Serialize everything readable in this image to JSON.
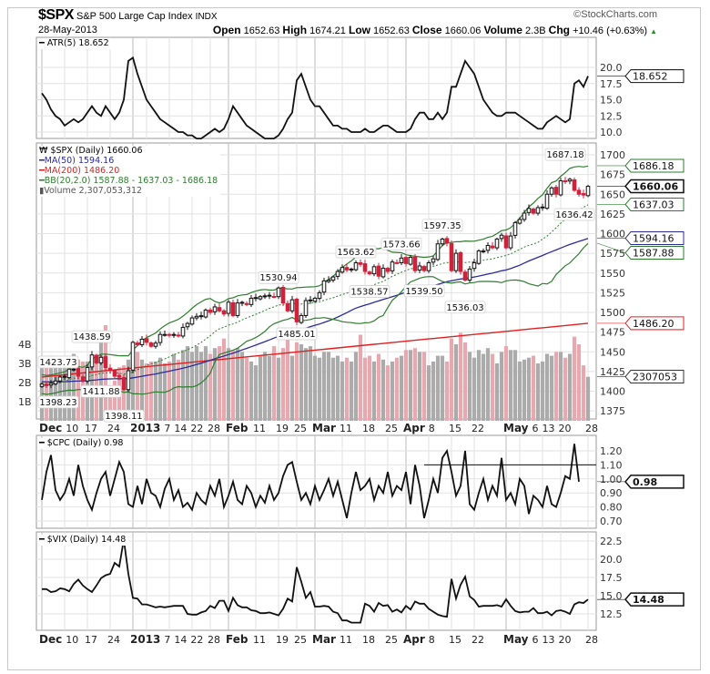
{
  "header": {
    "symbol": "$SPX",
    "name": "S&P 500 Large Cap Index",
    "exchange": "INDX",
    "brand": "©StockCharts.com",
    "date": "28-May-2013",
    "open_label": "Open",
    "open": "1652.63",
    "high_label": "High",
    "high": "1674.21",
    "low_label": "Low",
    "low": "1652.63",
    "close_label": "Close",
    "close": "1660.06",
    "volume_label": "Volume",
    "volume": "2.3B",
    "chg_label": "Chg",
    "chg": "+10.46 (+0.63%)",
    "up_arrow": "▲"
  },
  "legends": {
    "atr": "ATR(5) 18.652",
    "spx": "$SPX (Daily) 1660.06",
    "ma50": "MA(50) 1594.16",
    "ma200": "MA(200) 1486.20",
    "bb": "BB(20,2.0) 1587.88 - 1637.03 - 1686.18",
    "volume": "Volume 2,307,053,312",
    "cpc": "$CPC (Daily) 0.98",
    "vix": "$VIX (Daily) 14.48"
  },
  "colors": {
    "ma50": "#2b2b9a",
    "ma200": "#e02020",
    "bb": "#2e7d2e",
    "down": "#d0203a",
    "vol_up": "#ababab",
    "vol_down": "#e8a8b0"
  },
  "chart_data": {
    "type": "line",
    "title": "$SPX S&P 500 Large Cap Index",
    "x_ticks": [
      {
        "i": 0,
        "label": "Dec",
        "bold": true
      },
      {
        "i": 5,
        "label": "10"
      },
      {
        "i": 10,
        "label": "17"
      },
      {
        "i": 15,
        "label": "24"
      },
      {
        "i": 20,
        "label": "2013",
        "bold": true
      },
      {
        "i": 23,
        "label": "7"
      },
      {
        "i": 28,
        "label": "14"
      },
      {
        "i": 33,
        "label": "22"
      },
      {
        "i": 37,
        "label": "28"
      },
      {
        "i": 41,
        "label": "Feb",
        "bold": true
      },
      {
        "i": 47,
        "label": "11"
      },
      {
        "i": 52,
        "label": "19"
      },
      {
        "i": 56,
        "label": "25"
      },
      {
        "i": 60,
        "label": "Mar",
        "bold": true
      },
      {
        "i": 66,
        "label": "11"
      },
      {
        "i": 71,
        "label": "18"
      },
      {
        "i": 76,
        "label": "25"
      },
      {
        "i": 80,
        "label": "Apr",
        "bold": true
      },
      {
        "i": 85,
        "label": "8"
      },
      {
        "i": 90,
        "label": "15"
      },
      {
        "i": 95,
        "label": "22"
      },
      {
        "i": 102,
        "label": "May",
        "bold": true
      },
      {
        "i": 105,
        "label": "6"
      },
      {
        "i": 110,
        "label": "13"
      },
      {
        "i": 114,
        "label": "20"
      },
      {
        "i": 120,
        "label": "28"
      }
    ],
    "spx_close": [
      1409,
      1407,
      1410,
      1413,
      1418,
      1418,
      1428,
      1428,
      1419,
      1413,
      1430,
      1446,
      1436,
      1443,
      1430,
      1426,
      1419,
      1418,
      1402,
      1426,
      1462,
      1459,
      1466,
      1462,
      1457,
      1461,
      1472,
      1472,
      1471,
      1472,
      1470,
      1481,
      1486,
      1493,
      1495,
      1495,
      1503,
      1500,
      1507,
      1502,
      1498,
      1513,
      1496,
      1512,
      1512,
      1510,
      1518,
      1518,
      1520,
      1521,
      1521,
      1520,
      1531,
      1512,
      1502,
      1516,
      1488,
      1496,
      1515,
      1515,
      1518,
      1525,
      1540,
      1541,
      1545,
      1552,
      1557,
      1554,
      1555,
      1563,
      1561,
      1552,
      1549,
      1558,
      1546,
      1556,
      1552,
      1564,
      1563,
      1569,
      1562,
      1570,
      1553,
      1559,
      1553,
      1563,
      1568,
      1587,
      1593,
      1588,
      1553,
      1575,
      1552,
      1541,
      1555,
      1563,
      1578,
      1578,
      1585,
      1582,
      1593,
      1598,
      1582,
      1597,
      1614,
      1618,
      1626,
      1632,
      1626,
      1633,
      1633,
      1650,
      1658,
      1650,
      1667,
      1666,
      1669,
      1655,
      1650,
      1649,
      1660.06
    ],
    "price_annotations": [
      {
        "i": 3,
        "value": "1423.73",
        "type": "high"
      },
      {
        "i": 0,
        "value": "1398.23",
        "type": "low"
      },
      {
        "i": 11,
        "value": "1438.59",
        "type": "high"
      },
      {
        "i": 13,
        "value": "1411.88",
        "type": "low"
      },
      {
        "i": 18,
        "value": "1398.11",
        "type": "low"
      },
      {
        "i": 52,
        "value": "1530.94",
        "type": "high"
      },
      {
        "i": 56,
        "value": "1485.01",
        "type": "low"
      },
      {
        "i": 69,
        "value": "1563.62",
        "type": "high"
      },
      {
        "i": 72,
        "value": "1538.57",
        "type": "low"
      },
      {
        "i": 79,
        "value": "1573.66",
        "type": "high"
      },
      {
        "i": 84,
        "value": "1539.50",
        "type": "low"
      },
      {
        "i": 88,
        "value": "1597.35",
        "type": "high"
      },
      {
        "i": 93,
        "value": "1536.03",
        "type": "low"
      },
      {
        "i": 115,
        "value": "1687.18",
        "type": "high"
      },
      {
        "i": 118,
        "value": "1636.42",
        "type": "low"
      }
    ],
    "price_axis": {
      "ticks": [
        1375,
        1400,
        1425,
        1450,
        1475,
        1500,
        1525,
        1550,
        1575,
        1600,
        1625,
        1650,
        1675,
        1700
      ],
      "ylim": [
        1365,
        1712
      ]
    },
    "ma50_prior": 1412,
    "ma200_range": [
      1418,
      1486.2
    ],
    "volume_b": [
      3.2,
      3.1,
      3.4,
      3.0,
      3.1,
      3.0,
      3.3,
      3.5,
      3.2,
      3.1,
      3.1,
      3.4,
      3.5,
      4.2,
      5.0,
      1.5,
      2.1,
      2.8,
      2.9,
      3.2,
      3.8,
      3.6,
      3.2,
      3.0,
      3.1,
      3.1,
      3.3,
      3.0,
      3.1,
      3.5,
      3.2,
      3.7,
      3.9,
      3.6,
      3.9,
      3.6,
      3.9,
      3.5,
      3.8,
      3.9,
      4.3,
      3.8,
      3.7,
      3.8,
      3.6,
      3.3,
      3.1,
      2.9,
      3.4,
      3.6,
      3.4,
      3.9,
      3.3,
      3.8,
      4.3,
      3.4,
      4.1,
      4.0,
      3.8,
      3.9,
      3.4,
      3.3,
      3.6,
      3.6,
      3.3,
      3.4,
      3.1,
      3.3,
      3.1,
      3.6,
      4.5,
      3.3,
      3.4,
      3.1,
      3.5,
      3.2,
      2.9,
      3.1,
      3.3,
      3.4,
      3.7,
      3.7,
      3.8,
      3.6,
      3.6,
      2.9,
      3.1,
      3.4,
      3.4,
      3.1,
      4.3,
      4.0,
      4.6,
      4.1,
      3.6,
      3.3,
      3.7,
      3.5,
      3.8,
      3.5,
      3.0,
      3.6,
      3.9,
      3.7,
      3.7,
      3.1,
      3.2,
      3.3,
      3.4,
      3.0,
      3.1,
      3.5,
      3.4,
      3.6,
      3.6,
      3.3,
      3.5,
      4.4,
      4.0,
      2.9,
      2.3
    ],
    "volume_axis": {
      "ticks": [
        {
          "v": 1,
          "label": "1B"
        },
        {
          "v": 2,
          "label": "2B"
        },
        {
          "v": 3,
          "label": "3B"
        },
        {
          "v": 4,
          "label": "4B"
        }
      ]
    },
    "atr": [
      16,
      15,
      13.5,
      12.5,
      12,
      11,
      11.5,
      12,
      11.5,
      12,
      13,
      14,
      13,
      12.5,
      14,
      13,
      12,
      13,
      15,
      21,
      21.5,
      19,
      17,
      15,
      14,
      13,
      12,
      11.5,
      11,
      10.5,
      10,
      10,
      9.5,
      9.5,
      9,
      9,
      9.5,
      10,
      10.5,
      10,
      10.5,
      12,
      14,
      13,
      12,
      11,
      10.5,
      10,
      9.5,
      9,
      9,
      9,
      9.5,
      10.5,
      12,
      13,
      18,
      19,
      17,
      15,
      14,
      14,
      13,
      12,
      11,
      11,
      10.5,
      10.5,
      10,
      10,
      10,
      10.5,
      10,
      10,
      10.5,
      11,
      11,
      10.5,
      10,
      10,
      10,
      10.5,
      12,
      13,
      13,
      12,
      12,
      13,
      12,
      13,
      17,
      17,
      19,
      21,
      20,
      19,
      17,
      15,
      14,
      13,
      12.5,
      12.5,
      13,
      13,
      13,
      12.5,
      12,
      11.5,
      11,
      10.5,
      10.5,
      11.5,
      12,
      12.5,
      12,
      11.5,
      12,
      17.5,
      18,
      17,
      18.652
    ],
    "atr_axis": {
      "ticks": [
        "10.0",
        "12.5",
        "15.0",
        "17.5",
        "20.0"
      ]
    },
    "cpc": [
      0.85,
      1.05,
      1.17,
      0.92,
      0.85,
      0.9,
      1.0,
      0.88,
      1.1,
      0.95,
      0.85,
      0.78,
      0.9,
      1.0,
      1.05,
      0.88,
      1.0,
      1.12,
      1.05,
      0.82,
      0.8,
      0.95,
      0.82,
      1.0,
      0.9,
      0.88,
      0.8,
      0.93,
      1.0,
      0.85,
      0.92,
      0.8,
      0.83,
      0.78,
      0.9,
      0.85,
      0.82,
      0.95,
      0.88,
      1.0,
      0.8,
      0.88,
      0.98,
      0.85,
      0.82,
      0.95,
      0.9,
      0.8,
      0.88,
      0.83,
      0.95,
      0.85,
      0.9,
      1.02,
      1.1,
      1.12,
      0.98,
      0.85,
      0.9,
      0.82,
      0.95,
      0.85,
      0.92,
      1.0,
      0.88,
      0.98,
      0.85,
      0.72,
      0.9,
      1.05,
      0.92,
      0.95,
      1.0,
      0.85,
      0.95,
      0.9,
      1.05,
      0.88,
      0.95,
      0.92,
      1.05,
      0.82,
      1.1,
      0.95,
      0.72,
      0.85,
      1.0,
      0.9,
      1.15,
      1.2,
      1.05,
      0.88,
      0.95,
      1.2,
      0.82,
      0.78,
      0.9,
      1.0,
      0.85,
      0.95,
      0.88,
      1.15,
      0.85,
      0.9,
      0.82,
      1.0,
      0.95,
      0.75,
      0.88,
      0.85,
      0.8,
      0.95,
      0.82,
      0.8,
      0.9,
      1.02,
      1.0,
      1.25,
      0.98
    ],
    "cpc_axis": {
      "ticks": [
        "0.70",
        "0.80",
        "0.90",
        "1.00",
        "1.10",
        "1.20"
      ]
    },
    "cpc_reference": {
      "value": 1.1,
      "from_i": 84
    },
    "vix": [
      15.9,
      15.9,
      15.5,
      15.6,
      16.0,
      15.9,
      15.6,
      16.6,
      17.2,
      16.4,
      15.9,
      15.5,
      16.4,
      17.4,
      17.8,
      18.0,
      19.5,
      19.0,
      22.7,
      18.0,
      14.7,
      14.6,
      13.8,
      13.8,
      13.6,
      13.4,
      13.5,
      13.4,
      13.5,
      13.6,
      13.6,
      13.6,
      12.5,
      12.4,
      12.4,
      12.7,
      12.9,
      13.6,
      13.3,
      14.3,
      14.3,
      12.9,
      14.7,
      13.7,
      13.4,
      13.4,
      13.0,
      12.9,
      12.6,
      12.6,
      12.7,
      12.5,
      12.3,
      13.2,
      14.6,
      14.2,
      18.9,
      16.9,
      14.7,
      15.5,
      13.5,
      13.5,
      13.6,
      13.5,
      12.8,
      12.6,
      11.6,
      11.6,
      11.3,
      11.3,
      11.3,
      13.9,
      13.6,
      12.8,
      14.0,
      13.6,
      13.7,
      12.8,
      13.1,
      12.7,
      13.6,
      13.1,
      14.2,
      13.9,
      13.9,
      13.2,
      12.8,
      12.4,
      12.2,
      12.1,
      17.3,
      14.6,
      16.5,
      17.6,
      14.9,
      14.4,
      13.5,
      13.6,
      13.6,
      13.6,
      13.7,
      13.5,
      14.5,
      13.6,
      12.9,
      12.7,
      12.8,
      12.8,
      13.3,
      12.6,
      12.6,
      12.8,
      12.3,
      12.9,
      13.0,
      12.8,
      12.5,
      13.8,
      14.1,
      14.0,
      14.48
    ],
    "vix_axis": {
      "ticks": [
        "12.5",
        "15.0",
        "17.5",
        "20.0",
        "22.5"
      ]
    },
    "value_tags": {
      "atr": "18.652",
      "bb_upper": "1686.18",
      "close": "1660.06",
      "bb_mid": "1637.03",
      "ma50": "1594.16",
      "bb_lower": "1587.88",
      "ma200": "1486.20",
      "volume": "2307053",
      "cpc": "0.98",
      "vix": "14.48"
    }
  }
}
